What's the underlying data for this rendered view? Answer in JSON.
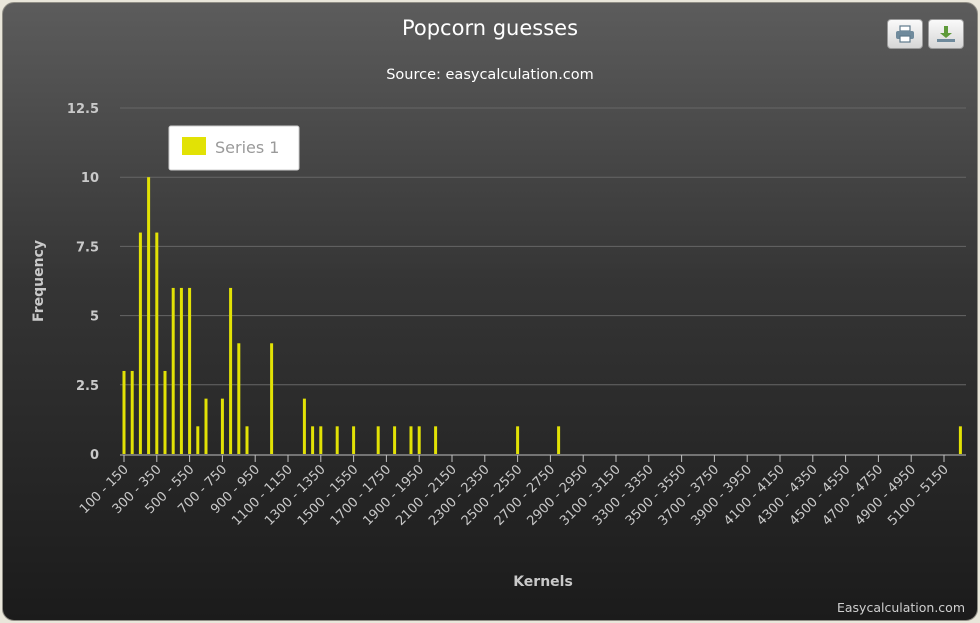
{
  "chart_data": {
    "type": "bar",
    "title": "Popcorn guesses",
    "subtitle": "Source: easycalculation.com",
    "xlabel": "Kernels",
    "ylabel": "Frequency",
    "ylim": [
      0,
      12.5
    ],
    "yticks": [
      "0",
      "2.5",
      "5",
      "7.5",
      "10",
      "12.5"
    ],
    "x_range": [
      100,
      5200
    ],
    "x_ticks": [
      "100 - 150",
      "300 - 350",
      "500 - 550",
      "700 - 750",
      "900 - 950",
      "1100 - 1150",
      "1300 - 1350",
      "1500 - 1550",
      "1700 - 1750",
      "1900 - 1950",
      "2100 - 2150",
      "2300 - 2350",
      "2500 - 2550",
      "2700 - 2750",
      "2900 - 2950",
      "3100 - 3150",
      "3300 - 3350",
      "3500 - 3550",
      "3700 - 3750",
      "3900 - 3950",
      "4100 - 4150",
      "4300 - 4350",
      "4500 - 4550",
      "4700 - 4750",
      "4900 - 4950",
      "5100 - 5150"
    ],
    "series": [
      {
        "name": "Series 1",
        "color": "#e2e205",
        "points": [
          [
            100,
            3
          ],
          [
            150,
            3
          ],
          [
            200,
            8
          ],
          [
            250,
            10
          ],
          [
            300,
            8
          ],
          [
            350,
            3
          ],
          [
            400,
            6
          ],
          [
            450,
            6
          ],
          [
            500,
            6
          ],
          [
            550,
            1
          ],
          [
            600,
            2
          ],
          [
            700,
            2
          ],
          [
            750,
            6
          ],
          [
            800,
            4
          ],
          [
            850,
            1
          ],
          [
            1000,
            4
          ],
          [
            1200,
            2
          ],
          [
            1250,
            1
          ],
          [
            1300,
            1
          ],
          [
            1400,
            1
          ],
          [
            1500,
            1
          ],
          [
            1650,
            1
          ],
          [
            1750,
            1
          ],
          [
            1850,
            1
          ],
          [
            1900,
            1
          ],
          [
            2000,
            1
          ],
          [
            2500,
            1
          ],
          [
            2750,
            1
          ],
          [
            5200,
            1
          ]
        ]
      }
    ],
    "grid": true,
    "legend_position": "top-left",
    "credits": "Easycalculation.com"
  },
  "toolbar": {
    "print_icon": "printer-icon",
    "export_icon": "download-icon"
  }
}
